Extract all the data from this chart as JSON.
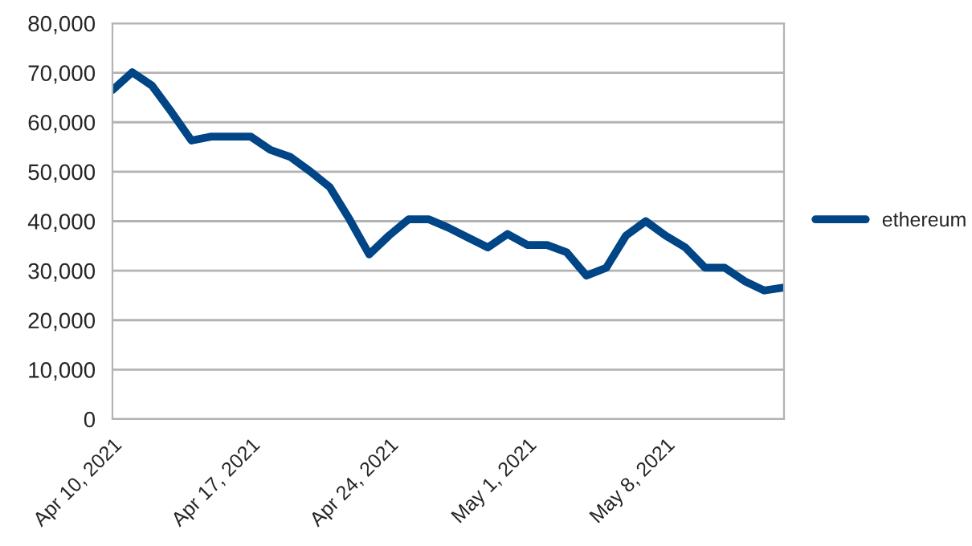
{
  "chart_data": {
    "type": "line",
    "x": [
      "2021-04-10",
      "2021-04-11",
      "2021-04-12",
      "2021-04-13",
      "2021-04-14",
      "2021-04-15",
      "2021-04-16",
      "2021-04-17",
      "2021-04-18",
      "2021-04-19",
      "2021-04-20",
      "2021-04-21",
      "2021-04-22",
      "2021-04-23",
      "2021-04-24",
      "2021-04-25",
      "2021-04-26",
      "2021-04-27",
      "2021-04-28",
      "2021-04-29",
      "2021-04-30",
      "2021-05-01",
      "2021-05-02",
      "2021-05-03",
      "2021-05-04",
      "2021-05-05",
      "2021-05-06",
      "2021-05-07",
      "2021-05-08",
      "2021-05-09",
      "2021-05-10",
      "2021-05-11",
      "2021-05-12",
      "2021-05-13",
      "2021-05-14"
    ],
    "series": [
      {
        "name": "ethereum",
        "color": "#004586",
        "values": [
          66500,
          70100,
          67400,
          62000,
          56300,
          57100,
          57100,
          57100,
          54400,
          53000,
          50100,
          46900,
          40400,
          33300,
          37100,
          40400,
          40400,
          38700,
          36700,
          34700,
          37400,
          35200,
          35200,
          33700,
          29000,
          30600,
          37100,
          40000,
          37100,
          34700,
          30600,
          30600,
          27900,
          26000,
          26600
        ]
      }
    ],
    "xlim": [
      "2021-04-10",
      "2021-05-14"
    ],
    "xticks": [
      {
        "value": "2021-04-10",
        "label": "Apr 10, 2021"
      },
      {
        "value": "2021-04-17",
        "label": "Apr 17, 2021"
      },
      {
        "value": "2021-04-24",
        "label": "Apr 24, 2021"
      },
      {
        "value": "2021-05-01",
        "label": "May 1, 2021"
      },
      {
        "value": "2021-05-08",
        "label": "May 8, 2021"
      }
    ],
    "ylim": [
      0,
      80000
    ],
    "yticks": [
      {
        "value": 0,
        "label": "0"
      },
      {
        "value": 10000,
        "label": "10,000"
      },
      {
        "value": 20000,
        "label": "20,000"
      },
      {
        "value": 30000,
        "label": "30,000"
      },
      {
        "value": 40000,
        "label": "40,000"
      },
      {
        "value": 50000,
        "label": "50,000"
      },
      {
        "value": 60000,
        "label": "60,000"
      },
      {
        "value": 70000,
        "label": "70,000"
      },
      {
        "value": 80000,
        "label": "80,000"
      }
    ],
    "grid": "y",
    "legend": "right",
    "marker": "none",
    "line_style": "solid"
  }
}
